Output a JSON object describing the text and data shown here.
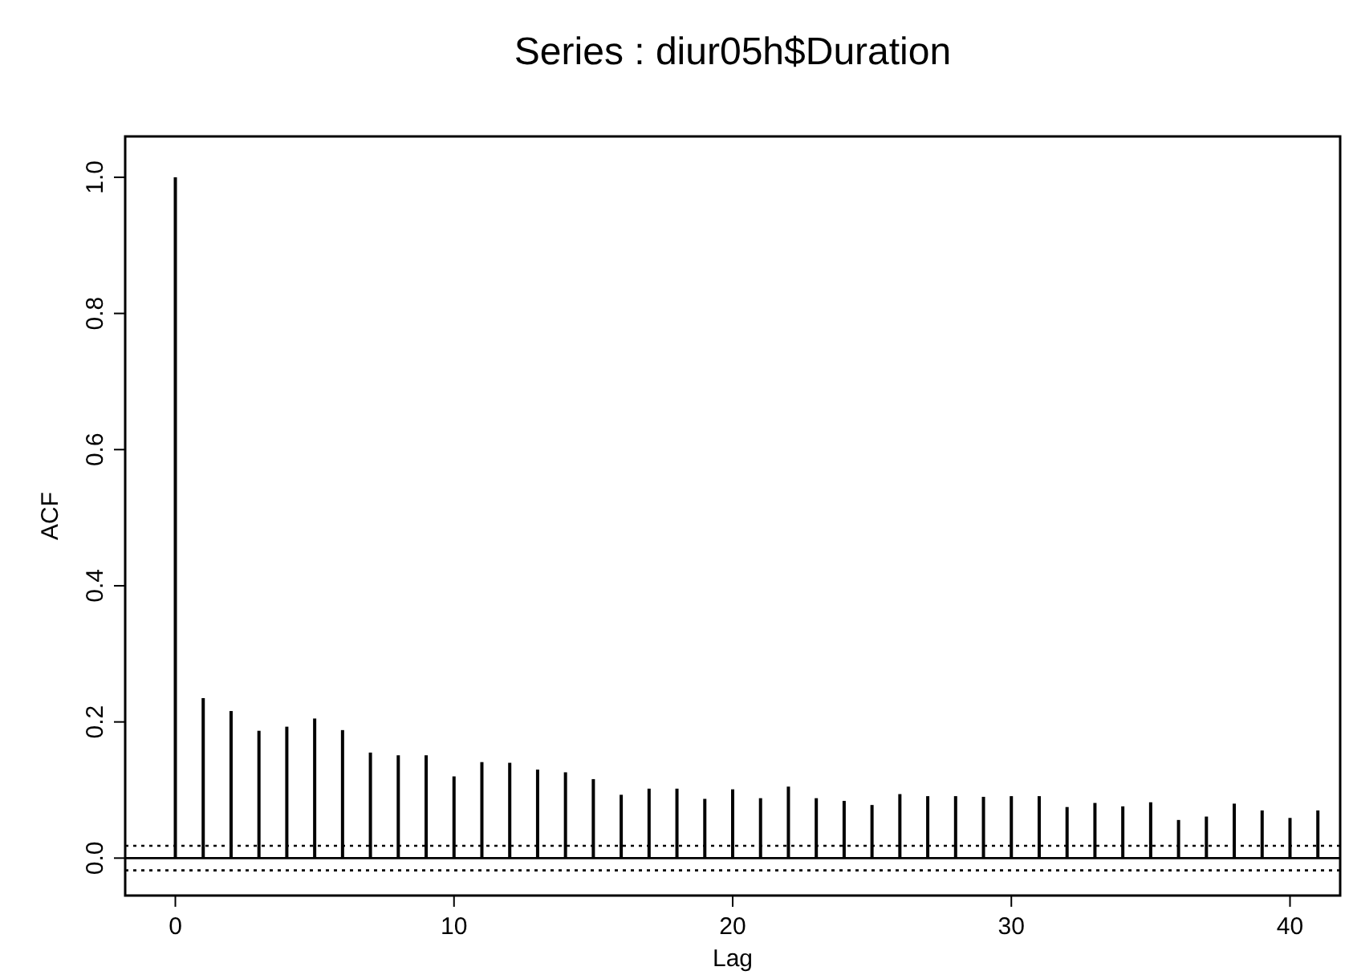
{
  "chart_data": {
    "type": "bar",
    "title": "Series : diur05h$Duration",
    "xlabel": "Lag",
    "ylabel": "ACF",
    "x": [
      0,
      1,
      2,
      3,
      4,
      5,
      6,
      7,
      8,
      9,
      10,
      11,
      12,
      13,
      14,
      15,
      16,
      17,
      18,
      19,
      20,
      21,
      22,
      23,
      24,
      25,
      26,
      27,
      28,
      29,
      30,
      31,
      32,
      33,
      34,
      35,
      36,
      37,
      38,
      39,
      40,
      41
    ],
    "values": [
      1.0,
      0.235,
      0.216,
      0.187,
      0.193,
      0.205,
      0.188,
      0.155,
      0.151,
      0.151,
      0.12,
      0.141,
      0.14,
      0.13,
      0.126,
      0.116,
      0.093,
      0.102,
      0.102,
      0.087,
      0.101,
      0.088,
      0.105,
      0.088,
      0.084,
      0.078,
      0.094,
      0.091,
      0.091,
      0.09,
      0.091,
      0.091,
      0.075,
      0.081,
      0.076,
      0.082,
      0.056,
      0.061,
      0.08,
      0.07,
      0.059,
      0.07
    ],
    "color": "#000000",
    "xlim": [
      -1.8,
      41.8
    ],
    "ylim": [
      -0.055,
      1.06
    ],
    "xticks": [
      0,
      10,
      20,
      30,
      40
    ],
    "yticks": [
      {
        "value": 0,
        "label": "0.0"
      },
      {
        "value": 0.2,
        "label": "0.2"
      },
      {
        "value": 0.4,
        "label": "0.4"
      },
      {
        "value": 0.6,
        "label": "0.6"
      },
      {
        "value": 0.8,
        "label": "0.8"
      },
      {
        "value": 1,
        "label": "1.0"
      }
    ],
    "ref_lines": [
      {
        "axis": "y",
        "value": 0,
        "line_style": "solid",
        "color": "#000000"
      },
      {
        "axis": "y",
        "value": 0.018,
        "line_style": "dotted",
        "color": "#000000"
      },
      {
        "axis": "y",
        "value": -0.018,
        "line_style": "dotted",
        "color": "#000000"
      }
    ],
    "grid": false
  }
}
